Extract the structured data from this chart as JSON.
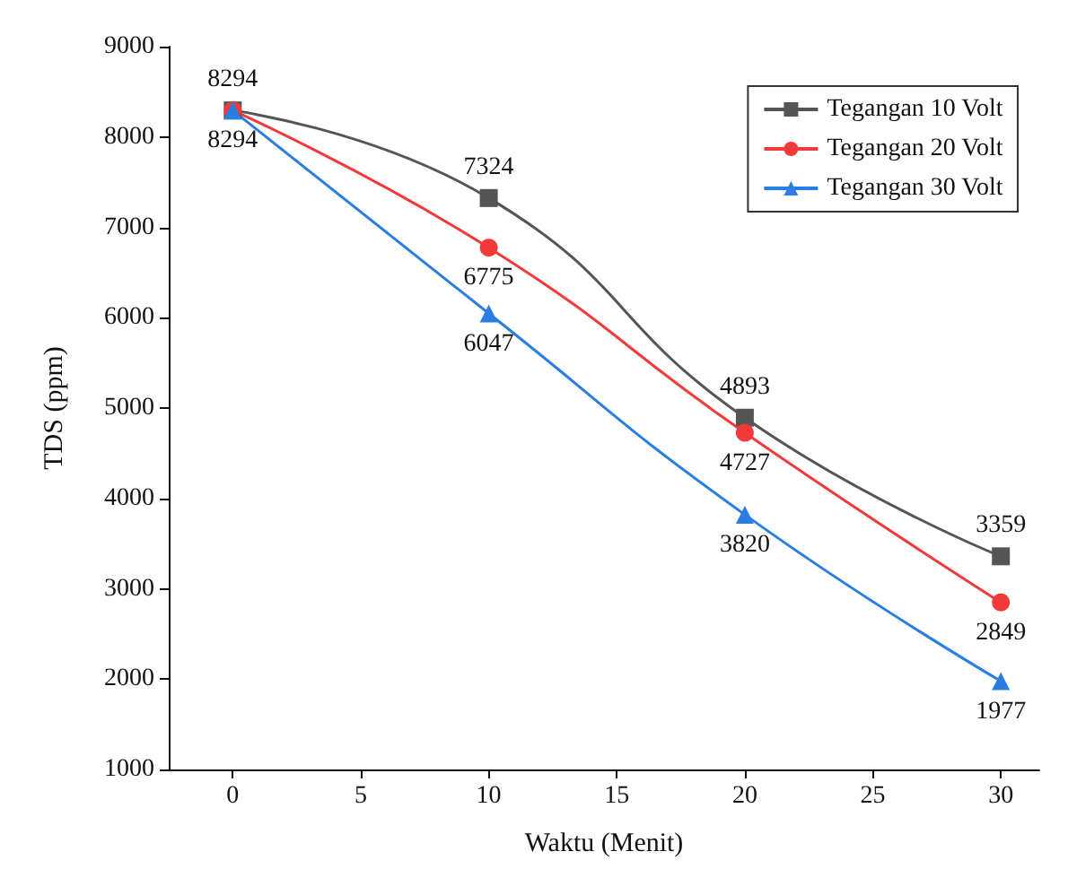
{
  "chart_data": {
    "type": "line",
    "xlabel": "Waktu (Menit)",
    "ylabel": "TDS (ppm)",
    "xlim": [
      -2.5,
      31.5
    ],
    "xticks": [
      0,
      5,
      10,
      15,
      20,
      25,
      30
    ],
    "ylim": [
      1000,
      9000
    ],
    "yticks": [
      1000,
      2000,
      3000,
      4000,
      5000,
      6000,
      7000,
      8000,
      9000
    ],
    "grid": false,
    "legend": "top right",
    "series": [
      {
        "name": "Tegangan 10 Volt",
        "color": "#555555",
        "marker": "square",
        "x": [
          0,
          10,
          20,
          30
        ],
        "values": [
          8294,
          7324,
          4893,
          3359
        ],
        "value_labels": [
          "8294",
          "7324",
          "4893",
          "3359"
        ]
      },
      {
        "name": "Tegangan 20 Volt",
        "color": "#f33a3a",
        "marker": "circle",
        "x": [
          0,
          10,
          20,
          30
        ],
        "values": [
          8294,
          6775,
          4727,
          2849
        ],
        "value_labels": [
          null,
          "6775",
          "4727",
          "2849"
        ]
      },
      {
        "name": "Tegangan 30 Volt",
        "color": "#2a7de1",
        "marker": "triangle",
        "x": [
          0,
          10,
          20,
          30
        ],
        "values": [
          8294,
          6047,
          3820,
          1977
        ],
        "value_labels": [
          "8294",
          "6047",
          "3820",
          "1977"
        ]
      }
    ]
  }
}
